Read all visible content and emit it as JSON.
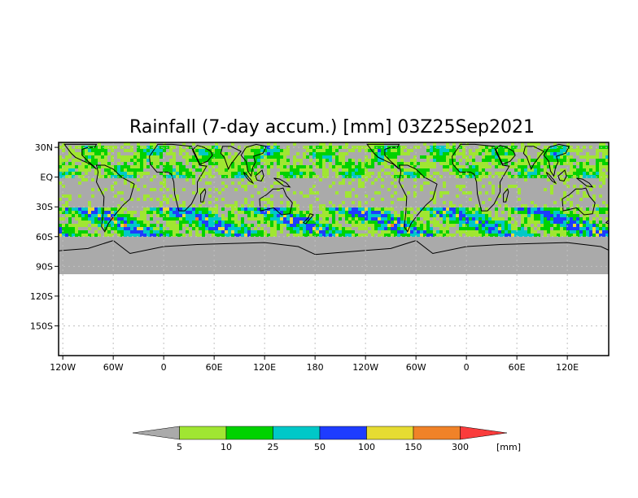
{
  "map": {
    "title": "Rainfall (7-day accum.) [mm] 03Z25Sep2021",
    "y_ticks": [
      "30N",
      "EQ",
      "30S",
      "60S",
      "90S",
      "120S",
      "150S"
    ],
    "x_ticks": [
      "120W",
      "60W",
      "0",
      "60E",
      "120E",
      "180",
      "120W",
      "60W",
      "0",
      "60E",
      "120E"
    ],
    "data_extent_lat": [
      -60,
      30
    ],
    "mask_extent_lat": [
      -90,
      -60
    ],
    "mask_color": "#aaaaaa",
    "no_rain_color": "#aaaaaa",
    "grid": "dotted"
  },
  "legend": {
    "unit": "[mm]",
    "bins": [
      {
        "label": "5",
        "color": "#aaaaaa"
      },
      {
        "label": "10",
        "color": "#a0e632"
      },
      {
        "label": "25",
        "color": "#00d200"
      },
      {
        "label": "50",
        "color": "#00c8c8"
      },
      {
        "label": "100",
        "color": "#1e3cff"
      },
      {
        "label": "150",
        "color": "#e6dc32"
      },
      {
        "label": "300",
        "color": "#f08228"
      }
    ],
    "top_color": "#fa3c3c"
  }
}
